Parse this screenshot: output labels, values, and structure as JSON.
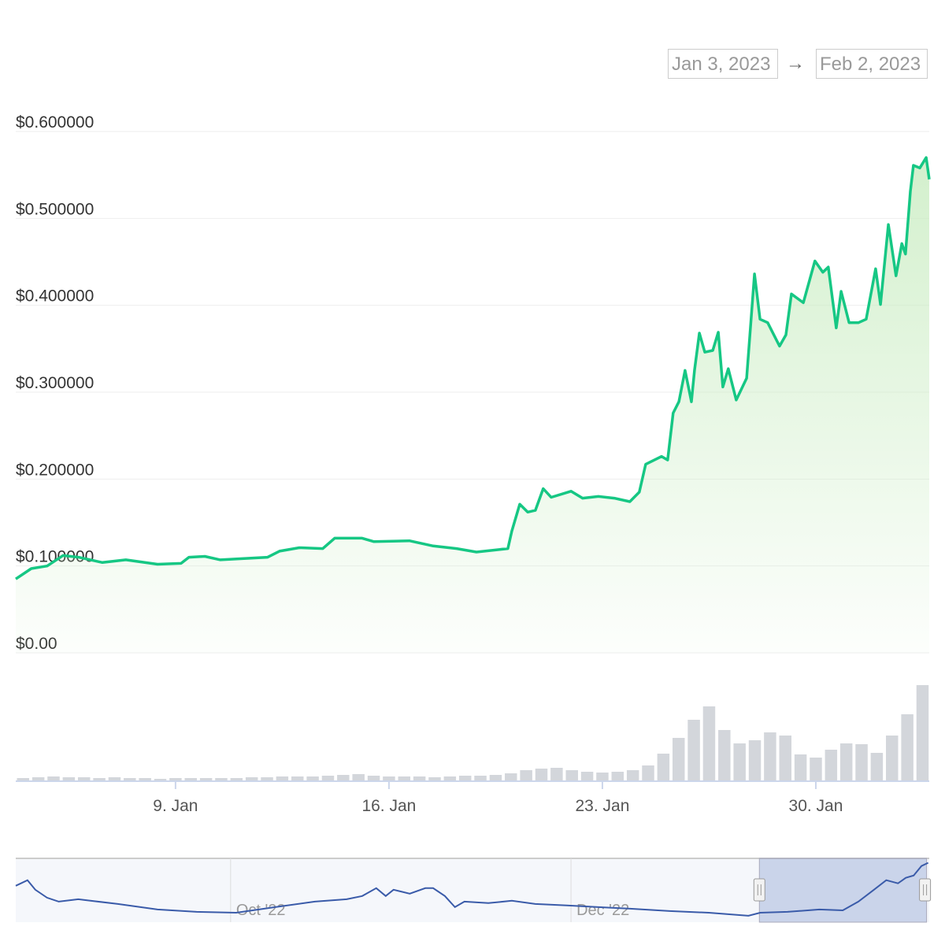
{
  "chart_data": {
    "type": "line",
    "range": {
      "from": "Jan 3, 2023",
      "separator": "→",
      "to": "Feb 2, 2023"
    },
    "color": "#16c784",
    "ylim": [
      0,
      0.6
    ],
    "yticks": [
      {
        "value": 0,
        "label": "$0.00"
      },
      {
        "value": 0.1,
        "label": "$0.100000"
      },
      {
        "value": 0.2,
        "label": "$0.200000"
      },
      {
        "value": 0.3,
        "label": "$0.300000"
      },
      {
        "value": 0.4,
        "label": "$0.400000"
      },
      {
        "value": 0.5,
        "label": "$0.500000"
      },
      {
        "value": 0.6,
        "label": "$0.600000"
      }
    ],
    "xlim": [
      3.76,
      33.72
    ],
    "xticks": [
      {
        "value": 9,
        "label": "9. Jan"
      },
      {
        "value": 16,
        "label": "16. Jan"
      },
      {
        "value": 23,
        "label": "23. Jan"
      },
      {
        "value": 30,
        "label": "30. Jan"
      }
    ],
    "grid": true,
    "x": [
      3.76,
      4.27,
      4.79,
      5.31,
      5.82,
      6.6,
      7.37,
      8.41,
      9.18,
      9.44,
      9.96,
      10.47,
      12.02,
      12.41,
      13.06,
      13.83,
      14.22,
      15.12,
      15.51,
      16.67,
      17.45,
      18.22,
      18.87,
      19.9,
      20.03,
      20.29,
      20.55,
      20.8,
      21.06,
      21.32,
      21.97,
      22.35,
      22.87,
      23.39,
      23.9,
      24.21,
      24.42,
      24.94,
      25.14,
      25.32,
      25.51,
      25.71,
      25.92,
      26.02,
      26.18,
      26.36,
      26.62,
      26.8,
      26.95,
      27.13,
      27.39,
      27.73,
      27.99,
      28.17,
      28.42,
      28.81,
      29.02,
      29.2,
      29.59,
      29.97,
      30.23,
      30.41,
      30.67,
      30.83,
      31.09,
      31.4,
      31.65,
      31.96,
      32.12,
      32.38,
      32.63,
      32.82,
      32.94,
      33.1,
      33.2,
      33.41,
      33.62,
      33.72
    ],
    "values": [
      0.085,
      0.097,
      0.1,
      0.112,
      0.11,
      0.104,
      0.107,
      0.102,
      0.103,
      0.11,
      0.111,
      0.107,
      0.11,
      0.117,
      0.121,
      0.12,
      0.132,
      0.132,
      0.128,
      0.129,
      0.123,
      0.12,
      0.116,
      0.12,
      0.14,
      0.171,
      0.162,
      0.164,
      0.189,
      0.179,
      0.186,
      0.178,
      0.18,
      0.178,
      0.174,
      0.185,
      0.217,
      0.226,
      0.222,
      0.276,
      0.289,
      0.325,
      0.289,
      0.325,
      0.368,
      0.346,
      0.348,
      0.369,
      0.306,
      0.327,
      0.291,
      0.316,
      0.436,
      0.384,
      0.38,
      0.353,
      0.366,
      0.413,
      0.403,
      0.451,
      0.438,
      0.444,
      0.374,
      0.416,
      0.38,
      0.38,
      0.384,
      0.442,
      0.401,
      0.493,
      0.434,
      0.471,
      0.459,
      0.531,
      0.561,
      0.558,
      0.57,
      0.545
    ],
    "volume": {
      "color": "#d3d6db",
      "ylim": [
        0,
        130
      ],
      "x": [
        4,
        4.5,
        5,
        5.5,
        6,
        6.5,
        7,
        7.5,
        8,
        8.5,
        9,
        9.5,
        10,
        10.5,
        11,
        11.5,
        12,
        12.5,
        13,
        13.5,
        14,
        14.5,
        15,
        15.5,
        16,
        16.5,
        17,
        17.5,
        18,
        18.5,
        19,
        19.5,
        20,
        20.5,
        21,
        21.5,
        22,
        22.5,
        23,
        23.5,
        24,
        24.5,
        25,
        25.5,
        26,
        26.5,
        27,
        27.5,
        28,
        28.5,
        29,
        29.5,
        30,
        30.5,
        31,
        31.5,
        32,
        32.5,
        33,
        33.5
      ],
      "values": [
        4,
        5,
        6,
        5,
        5,
        4,
        5,
        4,
        4,
        3,
        4,
        4,
        4,
        4,
        4,
        5,
        5,
        6,
        6,
        6,
        7,
        8,
        9,
        7,
        6,
        6,
        6,
        5,
        6,
        7,
        7,
        8,
        10,
        14,
        16,
        17,
        14,
        12,
        11,
        12,
        14,
        20,
        35,
        55,
        78,
        95,
        65,
        48,
        52,
        62,
        58,
        34,
        30,
        40,
        48,
        47,
        36,
        58,
        85,
        122
      ]
    },
    "navigator": {
      "color": "#3a5ba9",
      "xlim": [
        -38.5,
        125.2
      ],
      "ylim": [
        0,
        0.62
      ],
      "xticks": [
        {
          "value": 0,
          "label": "Oct '22"
        },
        {
          "value": 61,
          "label": "Dec '22"
        }
      ],
      "selection": [
        94.76,
        124.72
      ],
      "x": [
        -38.5,
        -36.4,
        -35,
        -32.9,
        -30.8,
        -27.3,
        -20.2,
        -13.1,
        -6.1,
        1,
        8,
        15.1,
        20.8,
        23.6,
        26.1,
        27.8,
        29.2,
        32.1,
        34.9,
        36.3,
        38.4,
        40.2,
        41.9,
        46.2,
        50.4,
        54.6,
        60.3,
        65.9,
        71.6,
        78.7,
        85.7,
        92.8,
        94.9,
        99.8,
        105.5,
        109.7,
        112.5,
        115.3,
        117.5,
        119.6,
        121,
        122.4,
        123.8,
        125
      ],
      "values": [
        0.354,
        0.408,
        0.315,
        0.238,
        0.2,
        0.223,
        0.177,
        0.123,
        0.1,
        0.092,
        0.146,
        0.2,
        0.223,
        0.254,
        0.331,
        0.254,
        0.315,
        0.277,
        0.331,
        0.331,
        0.254,
        0.146,
        0.2,
        0.185,
        0.208,
        0.177,
        0.162,
        0.146,
        0.131,
        0.108,
        0.092,
        0.062,
        0.092,
        0.1,
        0.123,
        0.115,
        0.2,
        0.315,
        0.408,
        0.377,
        0.431,
        0.454,
        0.546,
        0.577
      ]
    }
  }
}
